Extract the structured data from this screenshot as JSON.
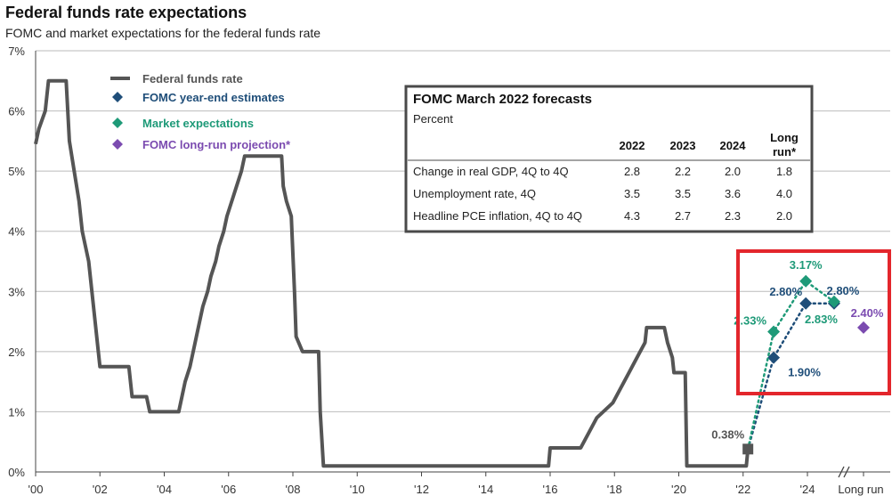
{
  "title": "Federal funds rate expectations",
  "subtitle": "FOMC and market expectations for the federal funds rate",
  "colors": {
    "ffr": "#555555",
    "fomc": "#1f4e79",
    "market": "#1e9a78",
    "longrun": "#7b4bb0",
    "highlight": "#e3262c",
    "grid": "#bbbbbb"
  },
  "chart_data": {
    "type": "line",
    "title": "Federal funds rate expectations",
    "subtitle": "FOMC and market expectations for the federal funds rate",
    "xlabel": "",
    "ylabel": "",
    "xlim": [
      2000,
      2026
    ],
    "ylim": [
      0,
      7
    ],
    "y_ticks": [
      {
        "value": 0,
        "label": "0%"
      },
      {
        "value": 1,
        "label": "1%"
      },
      {
        "value": 2,
        "label": "2%"
      },
      {
        "value": 3,
        "label": "3%"
      },
      {
        "value": 4,
        "label": "4%"
      },
      {
        "value": 5,
        "label": "5%"
      },
      {
        "value": 6,
        "label": "6%"
      },
      {
        "value": 7,
        "label": "7%"
      }
    ],
    "x_ticks": [
      {
        "value": 2000,
        "label": "'00"
      },
      {
        "value": 2002,
        "label": "'02"
      },
      {
        "value": 2004,
        "label": "'04"
      },
      {
        "value": 2006,
        "label": "'06"
      },
      {
        "value": 2008,
        "label": "'08"
      },
      {
        "value": 2010,
        "label": "'10"
      },
      {
        "value": 2012,
        "label": "'12"
      },
      {
        "value": 2014,
        "label": "'14"
      },
      {
        "value": 2016,
        "label": "'16"
      },
      {
        "value": 2018,
        "label": "'18"
      },
      {
        "value": 2020,
        "label": "'20"
      },
      {
        "value": 2022,
        "label": "'22"
      },
      {
        "value": 2024,
        "label": "'24"
      },
      {
        "value": 2026,
        "label": "Long run"
      }
    ],
    "grid": true,
    "legend_position": "top-left",
    "series": [
      {
        "name": "Federal funds rate",
        "style": "line",
        "color": "#555555",
        "points": [
          [
            2000.0,
            5.45
          ],
          [
            2000.1,
            5.7
          ],
          [
            2000.2,
            5.85
          ],
          [
            2000.3,
            6.0
          ],
          [
            2000.4,
            6.5
          ],
          [
            2000.95,
            6.5
          ],
          [
            2001.05,
            5.5
          ],
          [
            2001.2,
            5.0
          ],
          [
            2001.35,
            4.5
          ],
          [
            2001.45,
            4.0
          ],
          [
            2001.55,
            3.75
          ],
          [
            2001.65,
            3.5
          ],
          [
            2001.75,
            3.0
          ],
          [
            2001.85,
            2.5
          ],
          [
            2001.95,
            2.0
          ],
          [
            2002.0,
            1.75
          ],
          [
            2002.9,
            1.75
          ],
          [
            2003.0,
            1.25
          ],
          [
            2003.45,
            1.25
          ],
          [
            2003.55,
            1.0
          ],
          [
            2004.45,
            1.0
          ],
          [
            2004.55,
            1.25
          ],
          [
            2004.65,
            1.5
          ],
          [
            2004.8,
            1.75
          ],
          [
            2004.9,
            2.0
          ],
          [
            2005.0,
            2.25
          ],
          [
            2005.1,
            2.5
          ],
          [
            2005.2,
            2.75
          ],
          [
            2005.35,
            3.0
          ],
          [
            2005.45,
            3.25
          ],
          [
            2005.6,
            3.5
          ],
          [
            2005.7,
            3.75
          ],
          [
            2005.85,
            4.0
          ],
          [
            2005.95,
            4.25
          ],
          [
            2006.1,
            4.5
          ],
          [
            2006.25,
            4.75
          ],
          [
            2006.4,
            5.0
          ],
          [
            2006.5,
            5.25
          ],
          [
            2007.65,
            5.25
          ],
          [
            2007.7,
            4.75
          ],
          [
            2007.8,
            4.5
          ],
          [
            2007.95,
            4.25
          ],
          [
            2008.05,
            3.0
          ],
          [
            2008.1,
            2.25
          ],
          [
            2008.3,
            2.0
          ],
          [
            2008.8,
            2.0
          ],
          [
            2008.85,
            1.0
          ],
          [
            2008.95,
            0.1
          ],
          [
            2015.95,
            0.1
          ],
          [
            2016.0,
            0.4
          ],
          [
            2016.95,
            0.4
          ],
          [
            2017.2,
            0.65
          ],
          [
            2017.45,
            0.9
          ],
          [
            2017.95,
            1.15
          ],
          [
            2018.2,
            1.4
          ],
          [
            2018.45,
            1.65
          ],
          [
            2018.7,
            1.9
          ],
          [
            2018.95,
            2.15
          ],
          [
            2019.0,
            2.4
          ],
          [
            2019.55,
            2.4
          ],
          [
            2019.65,
            2.15
          ],
          [
            2019.8,
            1.9
          ],
          [
            2019.85,
            1.65
          ],
          [
            2020.2,
            1.65
          ],
          [
            2020.25,
            0.1
          ],
          [
            2022.1,
            0.1
          ],
          [
            2022.15,
            0.38
          ]
        ]
      },
      {
        "name": "FOMC year-end estimates",
        "style": "dotted-markers",
        "color": "#1f4e79",
        "points": [
          [
            2022.15,
            0.38
          ],
          [
            2022.95,
            1.9
          ],
          [
            2023.95,
            2.8
          ],
          [
            2024.95,
            2.8
          ]
        ],
        "labels": [
          "",
          "1.90%",
          "2.80%",
          "2.80%"
        ]
      },
      {
        "name": "Market expectations",
        "style": "dotted-markers",
        "color": "#1e9a78",
        "points": [
          [
            2022.15,
            0.38
          ],
          [
            2022.95,
            2.33
          ],
          [
            2023.95,
            3.17
          ],
          [
            2024.95,
            2.83
          ]
        ],
        "labels": [
          "",
          "2.33%",
          "3.17%",
          "2.83%"
        ]
      },
      {
        "name": "FOMC long-run projection*",
        "style": "marker",
        "color": "#7b4bb0",
        "points": [
          [
            2026.0,
            2.4
          ]
        ],
        "labels": [
          "2.40%"
        ]
      }
    ],
    "current_point": {
      "x": 2022.15,
      "y": 0.38,
      "label": "0.38%"
    },
    "legend": [
      {
        "name": "Federal funds rate",
        "marker": "line",
        "color": "#555555"
      },
      {
        "name": "FOMC year-end estimates",
        "marker": "diamond",
        "color": "#1f4e79"
      },
      {
        "name": "Market expectations",
        "marker": "diamond",
        "color": "#1e9a78"
      },
      {
        "name": "FOMC long-run projection*",
        "marker": "diamond",
        "color": "#7b4bb0"
      }
    ]
  },
  "forecast_table": {
    "title": "FOMC March 2022 forecasts",
    "subtitle": "Percent",
    "headers": [
      "2022",
      "2023",
      "2024",
      "Long",
      "run*"
    ],
    "rows": [
      {
        "label": "Change in real GDP, 4Q to 4Q",
        "values": [
          "2.8",
          "2.2",
          "2.0",
          "1.8"
        ]
      },
      {
        "label": "Unemployment rate, 4Q",
        "values": [
          "3.5",
          "3.5",
          "3.6",
          "4.0"
        ]
      },
      {
        "label": "Headline PCE inflation, 4Q to 4Q",
        "values": [
          "4.3",
          "2.7",
          "2.3",
          "2.0"
        ]
      }
    ]
  }
}
